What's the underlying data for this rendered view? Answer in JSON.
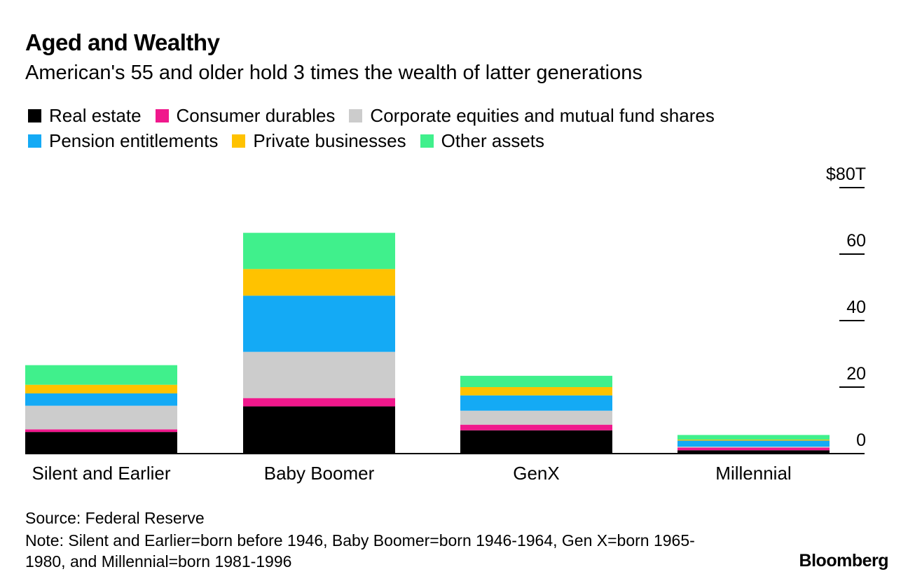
{
  "title": "Aged and Wealthy",
  "subtitle": "American's 55 and older hold 3 times the wealth of latter generations",
  "legend": [
    {
      "label": "Real estate",
      "color": "#000000"
    },
    {
      "label": "Consumer durables",
      "color": "#f0188c"
    },
    {
      "label": "Corporate equities and mutual fund shares",
      "color": "#cccccc"
    },
    {
      "label": "Pension entitlements",
      "color": "#14aaf5"
    },
    {
      "label": "Private businesses",
      "color": "#ffc200"
    },
    {
      "label": "Other assets",
      "color": "#40f08c"
    }
  ],
  "chart_data": {
    "type": "bar",
    "stacked": true,
    "categories": [
      "Silent and Earlier",
      "Baby Boomer",
      "GenX",
      "Millennial"
    ],
    "series": [
      {
        "name": "Real estate",
        "color": "#000000",
        "values": [
          6.5,
          14.2,
          7.0,
          1.0
        ]
      },
      {
        "name": "Consumer durables",
        "color": "#f0188c",
        "values": [
          0.8,
          2.5,
          1.7,
          0.8
        ]
      },
      {
        "name": "Corporate equities and mutual fund shares",
        "color": "#cccccc",
        "values": [
          7.1,
          13.9,
          4.2,
          0.3
        ]
      },
      {
        "name": "Pension entitlements",
        "color": "#14aaf5",
        "values": [
          3.7,
          16.9,
          4.6,
          1.8
        ]
      },
      {
        "name": "Private businesses",
        "color": "#ffc200",
        "values": [
          2.6,
          8.0,
          2.5,
          0.3
        ]
      },
      {
        "name": "Other assets",
        "color": "#40f08c",
        "values": [
          5.9,
          10.9,
          3.4,
          1.4
        ]
      }
    ],
    "yticks": [
      0,
      20,
      40,
      60,
      80
    ],
    "ytick_labels": [
      "0",
      "20",
      "40",
      "60",
      "$80T"
    ],
    "ylim": [
      0,
      80
    ],
    "axis_side": "right",
    "xlabel": "",
    "ylabel": ""
  },
  "source": "Source: Federal Reserve",
  "note": "Note: Silent and Earlier=born before 1946, Baby Boomer=born 1946-1964, Gen X=born 1965-1980, and Millennial=born 1981-1996",
  "brand": "Bloomberg"
}
